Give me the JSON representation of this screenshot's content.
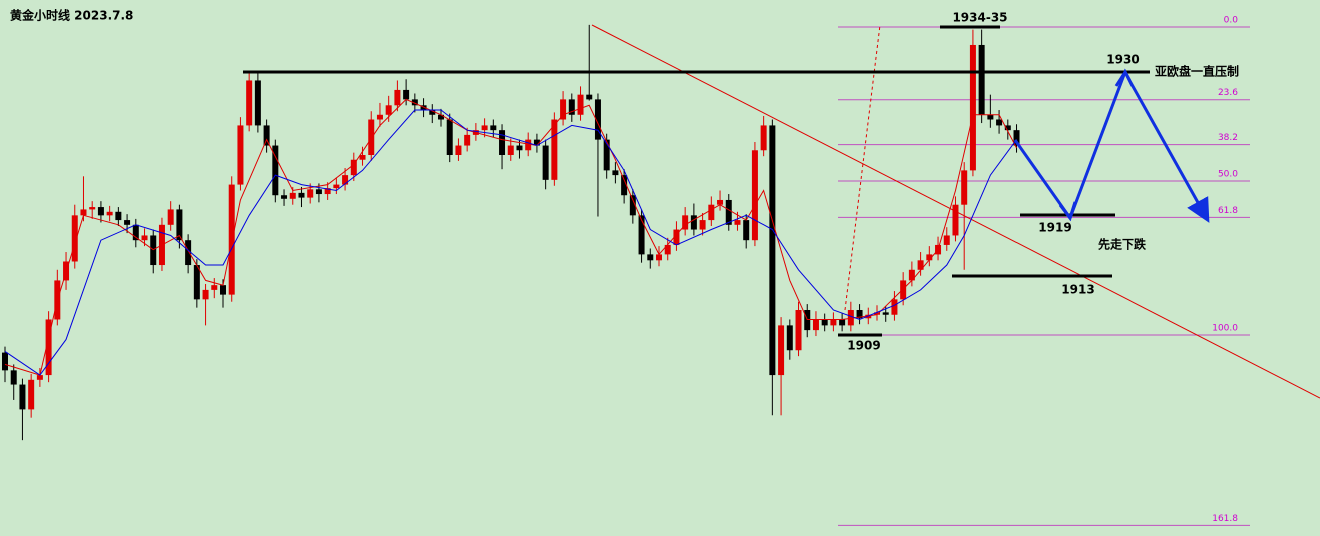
{
  "chart_data": {
    "type": "candlestick",
    "title": "黄金小时线 2023.7.8",
    "ylim": [
      1892.0,
      1937.3
    ],
    "up_color": "#e00000",
    "down_color": "#000000",
    "candles": [
      [
        1907.5,
        1908.0,
        1905.0,
        1906.0
      ],
      [
        1906.0,
        1906.5,
        1903.5,
        1904.8
      ],
      [
        1904.8,
        1905.3,
        1900.1,
        1902.7
      ],
      [
        1902.7,
        1905.7,
        1902.0,
        1905.2
      ],
      [
        1905.2,
        1906.2,
        1904.6,
        1905.6
      ],
      [
        1905.6,
        1911.0,
        1905.0,
        1910.3
      ],
      [
        1910.3,
        1914.5,
        1909.8,
        1913.6
      ],
      [
        1913.6,
        1916.0,
        1912.8,
        1915.2
      ],
      [
        1915.2,
        1920.0,
        1914.6,
        1919.1
      ],
      [
        1919.1,
        1922.4,
        1918.6,
        1919.6
      ],
      [
        1919.6,
        1920.3,
        1918.8,
        1919.8
      ],
      [
        1919.8,
        1920.3,
        1918.5,
        1919.1
      ],
      [
        1919.1,
        1919.9,
        1918.6,
        1919.4
      ],
      [
        1919.4,
        1919.8,
        1918.2,
        1918.7
      ],
      [
        1918.7,
        1919.2,
        1917.6,
        1918.3
      ],
      [
        1918.3,
        1918.8,
        1916.4,
        1917.0
      ],
      [
        1917.0,
        1918.0,
        1916.5,
        1917.4
      ],
      [
        1917.4,
        1917.9,
        1914.2,
        1914.9
      ],
      [
        1914.9,
        1918.9,
        1914.4,
        1918.3
      ],
      [
        1918.3,
        1920.3,
        1917.8,
        1919.6
      ],
      [
        1919.6,
        1920.0,
        1916.3,
        1917.0
      ],
      [
        1917.0,
        1917.5,
        1914.2,
        1914.9
      ],
      [
        1914.9,
        1915.4,
        1911.3,
        1912.0
      ],
      [
        1912.0,
        1913.3,
        1909.8,
        1912.8
      ],
      [
        1912.8,
        1913.8,
        1912.1,
        1913.2
      ],
      [
        1913.2,
        1913.7,
        1911.3,
        1912.4
      ],
      [
        1912.4,
        1922.4,
        1911.8,
        1921.7
      ],
      [
        1921.7,
        1927.4,
        1921.2,
        1926.7
      ],
      [
        1926.7,
        1931.3,
        1926.2,
        1930.5
      ],
      [
        1930.5,
        1931.3,
        1926.1,
        1926.7
      ],
      [
        1926.7,
        1927.2,
        1924.4,
        1925.0
      ],
      [
        1925.0,
        1925.5,
        1920.2,
        1920.8
      ],
      [
        1920.8,
        1921.3,
        1919.9,
        1920.5
      ],
      [
        1920.5,
        1921.5,
        1920.0,
        1921.0
      ],
      [
        1921.0,
        1921.5,
        1919.8,
        1920.6
      ],
      [
        1920.6,
        1921.8,
        1920.1,
        1921.3
      ],
      [
        1921.3,
        1921.8,
        1920.2,
        1920.9
      ],
      [
        1920.9,
        1921.9,
        1920.4,
        1921.4
      ],
      [
        1921.4,
        1922.3,
        1920.9,
        1921.7
      ],
      [
        1921.7,
        1923.1,
        1921.2,
        1922.5
      ],
      [
        1922.5,
        1924.4,
        1922.0,
        1923.8
      ],
      [
        1923.8,
        1924.9,
        1923.3,
        1924.2
      ],
      [
        1924.2,
        1927.9,
        1923.7,
        1927.2
      ],
      [
        1927.2,
        1928.6,
        1926.6,
        1927.6
      ],
      [
        1927.6,
        1929.2,
        1927.0,
        1928.4
      ],
      [
        1928.4,
        1930.5,
        1927.9,
        1929.7
      ],
      [
        1929.7,
        1930.6,
        1928.4,
        1928.9
      ],
      [
        1928.9,
        1929.4,
        1927.8,
        1928.4
      ],
      [
        1928.4,
        1929.0,
        1927.4,
        1928.0
      ],
      [
        1928.0,
        1928.5,
        1926.9,
        1927.6
      ],
      [
        1927.6,
        1928.1,
        1926.6,
        1927.2
      ],
      [
        1927.2,
        1927.7,
        1923.6,
        1924.2
      ],
      [
        1924.2,
        1925.6,
        1923.7,
        1925.0
      ],
      [
        1925.0,
        1926.5,
        1924.5,
        1925.9
      ],
      [
        1925.9,
        1926.9,
        1925.4,
        1926.3
      ],
      [
        1926.3,
        1927.3,
        1925.7,
        1926.7
      ],
      [
        1926.7,
        1927.2,
        1925.7,
        1926.3
      ],
      [
        1926.3,
        1926.8,
        1923.0,
        1924.2
      ],
      [
        1924.2,
        1925.6,
        1923.7,
        1925.0
      ],
      [
        1925.0,
        1925.5,
        1923.9,
        1924.6
      ],
      [
        1924.6,
        1926.1,
        1924.1,
        1925.5
      ],
      [
        1925.5,
        1926.0,
        1924.4,
        1925.0
      ],
      [
        1925.0,
        1925.5,
        1921.3,
        1922.1
      ],
      [
        1922.1,
        1927.8,
        1921.6,
        1927.2
      ],
      [
        1927.2,
        1929.6,
        1926.7,
        1928.9
      ],
      [
        1928.9,
        1929.4,
        1927.0,
        1927.6
      ],
      [
        1927.6,
        1930.0,
        1927.1,
        1929.3
      ],
      [
        1929.3,
        1935.2,
        1928.8,
        1928.9
      ],
      [
        1928.9,
        1929.4,
        1919.0,
        1925.5
      ],
      [
        1925.5,
        1926.0,
        1922.2,
        1922.9
      ],
      [
        1922.9,
        1923.6,
        1921.8,
        1922.5
      ],
      [
        1922.5,
        1923.0,
        1920.1,
        1920.8
      ],
      [
        1920.8,
        1921.3,
        1918.4,
        1919.1
      ],
      [
        1919.1,
        1919.6,
        1915.1,
        1915.8
      ],
      [
        1915.8,
        1916.3,
        1914.6,
        1915.3
      ],
      [
        1915.3,
        1916.5,
        1914.8,
        1915.8
      ],
      [
        1915.8,
        1917.2,
        1915.3,
        1916.6
      ],
      [
        1916.6,
        1918.6,
        1916.1,
        1917.9
      ],
      [
        1917.9,
        1919.8,
        1917.4,
        1919.1
      ],
      [
        1919.1,
        1920.1,
        1917.4,
        1917.9
      ],
      [
        1917.9,
        1919.3,
        1917.4,
        1918.7
      ],
      [
        1918.7,
        1920.7,
        1918.2,
        1920.0
      ],
      [
        1920.0,
        1921.2,
        1919.5,
        1920.4
      ],
      [
        1920.4,
        1920.9,
        1917.8,
        1918.3
      ],
      [
        1918.3,
        1919.4,
        1917.8,
        1918.7
      ],
      [
        1918.7,
        1919.2,
        1916.3,
        1917.0
      ],
      [
        1917.0,
        1925.3,
        1916.5,
        1924.6
      ],
      [
        1924.6,
        1927.5,
        1924.1,
        1926.7
      ],
      [
        1926.7,
        1927.2,
        1902.2,
        1905.6
      ],
      [
        1905.6,
        1910.5,
        1902.2,
        1909.8
      ],
      [
        1909.8,
        1910.3,
        1906.9,
        1907.7
      ],
      [
        1907.7,
        1911.8,
        1907.2,
        1911.1
      ],
      [
        1911.1,
        1911.6,
        1908.8,
        1909.4
      ],
      [
        1909.4,
        1911.0,
        1908.9,
        1910.3
      ],
      [
        1910.3,
        1910.8,
        1909.3,
        1909.8
      ],
      [
        1909.8,
        1910.9,
        1909.3,
        1910.3
      ],
      [
        1910.3,
        1910.8,
        1909.3,
        1909.8
      ],
      [
        1909.8,
        1911.8,
        1909.3,
        1911.1
      ],
      [
        1911.1,
        1911.6,
        1909.9,
        1910.4
      ],
      [
        1910.4,
        1911.3,
        1909.9,
        1910.7
      ],
      [
        1910.7,
        1911.5,
        1910.2,
        1910.9
      ],
      [
        1910.9,
        1911.4,
        1910.1,
        1910.7
      ],
      [
        1910.7,
        1912.7,
        1910.2,
        1912.0
      ],
      [
        1912.0,
        1914.3,
        1911.5,
        1913.6
      ],
      [
        1913.6,
        1915.2,
        1913.1,
        1914.5
      ],
      [
        1914.5,
        1916.0,
        1914.0,
        1915.3
      ],
      [
        1915.3,
        1916.5,
        1914.8,
        1915.8
      ],
      [
        1915.8,
        1917.3,
        1915.3,
        1916.6
      ],
      [
        1916.6,
        1918.1,
        1916.1,
        1917.4
      ],
      [
        1917.4,
        1920.7,
        1916.9,
        1920.0
      ],
      [
        1920.0,
        1923.6,
        1914.5,
        1922.9
      ],
      [
        1922.9,
        1934.8,
        1922.4,
        1933.5
      ],
      [
        1933.5,
        1934.8,
        1926.9,
        1927.6
      ],
      [
        1927.6,
        1929.3,
        1926.5,
        1927.2
      ],
      [
        1927.2,
        1928.0,
        1926.0,
        1926.7
      ],
      [
        1926.7,
        1927.2,
        1925.5,
        1926.3
      ],
      [
        1926.3,
        1926.8,
        1924.4,
        1925.0
      ]
    ],
    "series": [
      {
        "color": "#e00000",
        "x": [
          0,
          4,
          6,
          9,
          13,
          17,
          20,
          23,
          25,
          27,
          30,
          33,
          37,
          40,
          43,
          46,
          50,
          53,
          57,
          61,
          64,
          67,
          70,
          73,
          75,
          78,
          82,
          85,
          87,
          90,
          92,
          96,
          100,
          104,
          107,
          109,
          111,
          114,
          116
        ],
        "values": [
          1906.5,
          1905.6,
          1911.9,
          1919.1,
          1918.3,
          1916.2,
          1917.4,
          1913.6,
          1913.2,
          1920.4,
          1925.5,
          1921.2,
          1921.7,
          1923.4,
          1926.7,
          1928.9,
          1927.6,
          1926.3,
          1925.5,
          1925.0,
          1927.6,
          1928.4,
          1923.8,
          1918.7,
          1915.8,
          1918.3,
          1920.0,
          1918.7,
          1921.2,
          1913.6,
          1910.3,
          1910.3,
          1910.7,
          1913.6,
          1916.2,
          1921.2,
          1927.6,
          1927.6,
          1924.8
        ]
      },
      {
        "color": "#0000e0",
        "x": [
          0,
          4,
          7,
          11,
          15,
          19,
          23,
          25,
          28,
          31,
          34,
          38,
          41,
          44,
          47,
          50,
          53,
          57,
          61,
          65,
          68,
          71,
          74,
          77,
          81,
          85,
          88,
          91,
          95,
          98,
          102,
          105,
          108,
          110,
          113,
          116
        ],
        "values": [
          1907.6,
          1905.6,
          1908.6,
          1917.0,
          1918.3,
          1917.4,
          1914.9,
          1914.9,
          1919.1,
          1922.5,
          1921.7,
          1921.2,
          1922.9,
          1925.5,
          1928.0,
          1928.0,
          1926.3,
          1925.9,
          1925.0,
          1926.7,
          1926.3,
          1922.9,
          1917.9,
          1916.6,
          1917.9,
          1919.1,
          1917.9,
          1914.5,
          1911.1,
          1910.3,
          1911.5,
          1912.8,
          1914.9,
          1917.4,
          1922.5,
          1925.5
        ]
      }
    ],
    "fib_levels": [
      {
        "value": 0,
        "label": "0.0"
      },
      23.6,
      38.2,
      {
        "value": 50,
        "label": "50.0"
      },
      61.8,
      {
        "value": 100,
        "label": "100.0"
      },
      161.8
    ],
    "annotations": {
      "high": "1934-35",
      "target": "1930",
      "resistance": "亚欧盘一直压制",
      "first_support": "1919",
      "plan": "先走下跌",
      "support": "1913",
      "low": "1909"
    }
  }
}
